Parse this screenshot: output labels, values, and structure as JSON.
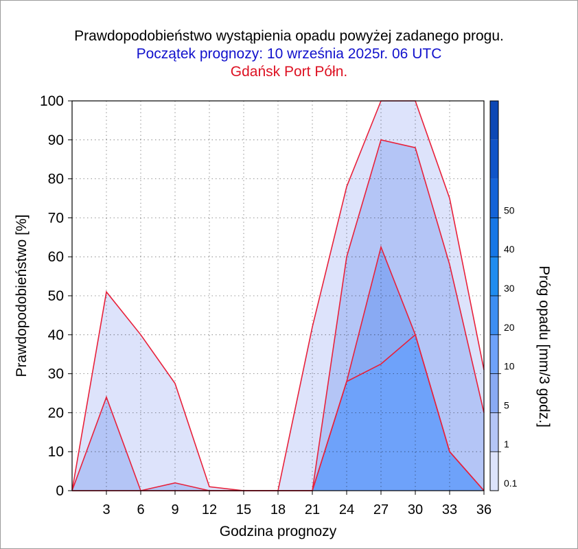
{
  "chart_data": {
    "type": "area",
    "title": "Prawdopodobieństwo wystąpienia opadu powyżej zadanego progu.",
    "subtitle": "Początek prognozy: 10 września 2025r. 06 UTC",
    "location": "Gdańsk Port Półn.",
    "xlabel": "Godzina prognozy",
    "ylabel": "Prawdopodobieństwo [%]",
    "colorbar_label": "Próg opadu [mm/3 godz.]",
    "x": [
      0,
      3,
      6,
      9,
      12,
      15,
      18,
      21,
      24,
      27,
      30,
      33,
      36
    ],
    "x_ticks": [
      "3",
      "6",
      "9",
      "12",
      "15",
      "18",
      "21",
      "24",
      "27",
      "30",
      "33",
      "36"
    ],
    "xlim": [
      0,
      36
    ],
    "y_ticks": [
      "0",
      "10",
      "20",
      "30",
      "40",
      "50",
      "60",
      "70",
      "80",
      "90",
      "100"
    ],
    "ylim": [
      0,
      100
    ],
    "grid": true,
    "series": [
      {
        "name": "0.1",
        "color": "#dde3fb",
        "values": [
          0,
          51,
          40,
          27.5,
          1,
          0,
          0,
          42,
          78,
          100,
          100,
          75,
          31
        ]
      },
      {
        "name": "1",
        "color": "#b4c5f6",
        "values": [
          0,
          24,
          0,
          2,
          0,
          0,
          0,
          0,
          60,
          90,
          88,
          58,
          20
        ]
      },
      {
        "name": "5",
        "color": "#89aaf3",
        "values": [
          0,
          0,
          0,
          0,
          0,
          0,
          0,
          0,
          28,
          62.5,
          40,
          10,
          0
        ]
      },
      {
        "name": "10",
        "color": "#6ea2fa",
        "values": [
          0,
          0,
          0,
          0,
          0,
          0,
          0,
          0,
          28,
          32.5,
          40,
          10,
          0
        ]
      }
    ],
    "line_color": "#e8203a",
    "colorbar": {
      "tick_labels": [
        "0.1",
        "1",
        "5",
        "10",
        "20",
        "30",
        "40",
        "50"
      ],
      "colors": [
        "#dde3fb",
        "#b4c5f6",
        "#89aaf3",
        "#6ea2fa",
        "#3d8ef2",
        "#1f8cf0",
        "#1677e6",
        "#1463d8",
        "#1054c8",
        "#0c48b5"
      ]
    }
  }
}
